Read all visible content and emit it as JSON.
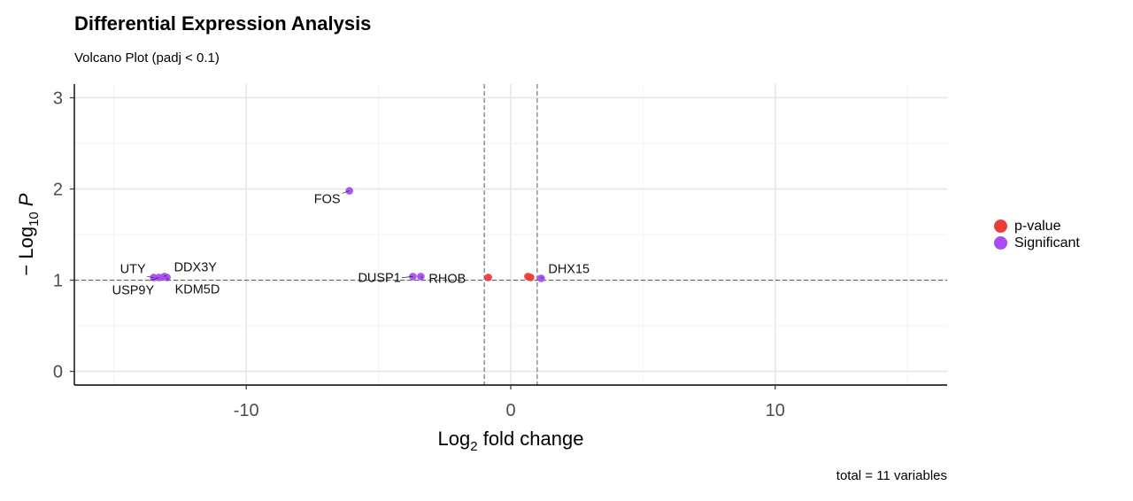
{
  "title": "Differential Expression Analysis",
  "subtitle": "Volcano Plot (padj < 0.1)",
  "caption": "total = 11 variables",
  "colors": {
    "p-value": "#f03b3b",
    "Significant": "#a64cf2"
  },
  "legend": [
    {
      "label": "p-value",
      "color": "#f03b3b"
    },
    {
      "label": "Significant",
      "color": "#a64cf2"
    }
  ],
  "chart_data": {
    "type": "scatter",
    "title": "Differential Expression Analysis",
    "subtitle": "Volcano Plot (padj < 0.1)",
    "xlabel": "Log2 fold change",
    "ylabel": "-Log10 P",
    "xlim": [
      -16.5,
      16.5
    ],
    "ylim": [
      -0.15,
      3.15
    ],
    "xticks": [
      -10,
      0,
      10
    ],
    "xtick_labels": [
      "-10",
      "0",
      "10"
    ],
    "yticks": [
      0,
      1,
      2,
      3
    ],
    "ytick_labels": [
      "0",
      "1",
      "2",
      "3"
    ],
    "grid": true,
    "legend_position": "right",
    "thresholds": {
      "x": [
        -1,
        1
      ],
      "y": 1
    },
    "series": [
      {
        "name": "p-value",
        "points": [
          {
            "x": -0.85,
            "y": 1.03
          },
          {
            "x": 0.65,
            "y": 1.04
          },
          {
            "x": 0.75,
            "y": 1.03
          }
        ]
      },
      {
        "name": "Significant",
        "points": [
          {
            "label": "FOS",
            "x": -6.1,
            "y": 1.98
          },
          {
            "label": "UTY",
            "x": -13.5,
            "y": 1.03
          },
          {
            "label": "USP9Y",
            "x": -13.3,
            "y": 1.03
          },
          {
            "label": "DDX3Y",
            "x": -13.1,
            "y": 1.04
          },
          {
            "label": "KDM5D",
            "x": -13.0,
            "y": 1.03
          },
          {
            "label": "DUSP1",
            "x": -3.7,
            "y": 1.04
          },
          {
            "label": "RHOB",
            "x": -3.4,
            "y": 1.04
          },
          {
            "label": "DHX15",
            "x": 1.15,
            "y": 1.02
          }
        ]
      }
    ],
    "annotations": [
      {
        "text": "FOS",
        "gene": "FOS"
      },
      {
        "text": "UTY",
        "gene": "UTY"
      },
      {
        "text": "USP9Y",
        "gene": "USP9Y"
      },
      {
        "text": "DDX3Y",
        "gene": "DDX3Y"
      },
      {
        "text": "KDM5D",
        "gene": "KDM5D"
      },
      {
        "text": "DUSP1",
        "gene": "DUSP1"
      },
      {
        "text": "RHOB",
        "gene": "RHOB"
      },
      {
        "text": "DHX15",
        "gene": "DHX15"
      }
    ]
  }
}
